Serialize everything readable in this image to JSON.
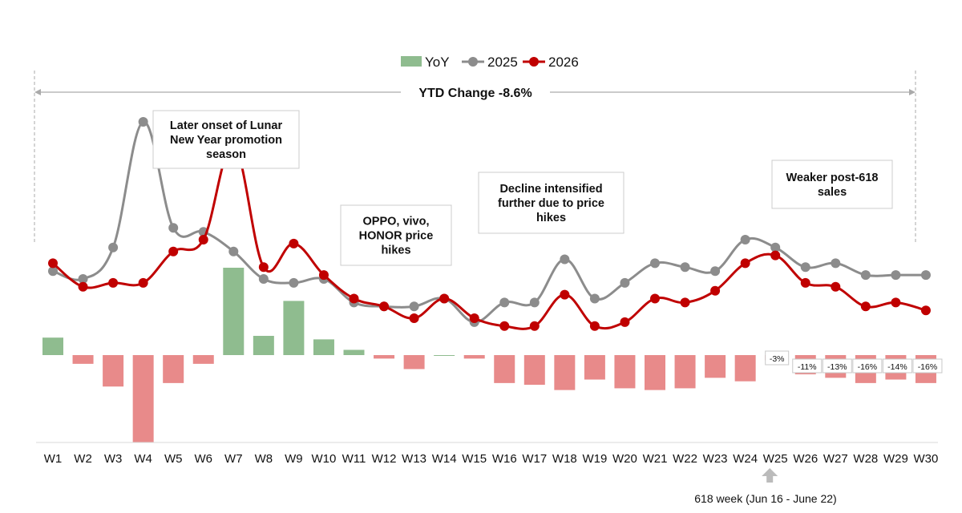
{
  "chart_data": {
    "type": "bar+line",
    "categories": [
      "W1",
      "W2",
      "W3",
      "W4",
      "W5",
      "W6",
      "W7",
      "W8",
      "W9",
      "W10",
      "W11",
      "W12",
      "W13",
      "W14",
      "W15",
      "W16",
      "W17",
      "W18",
      "W19",
      "W20",
      "W21",
      "W22",
      "W23",
      "W24",
      "W25",
      "W26",
      "W27",
      "W28",
      "W29",
      "W30"
    ],
    "series": [
      {
        "name": "YoY",
        "type": "bar",
        "color_positive": "#8fbc8f",
        "color_negative": "#e88a8a",
        "values": [
          10,
          -5,
          -18,
          -50,
          -16,
          -5,
          50,
          11,
          31,
          9,
          3,
          -2,
          -8,
          0,
          -2,
          -16,
          -17,
          -20,
          -14,
          -19,
          -20,
          -19,
          -13,
          -15,
          -3,
          -11,
          -13,
          -16,
          -14,
          -16
        ]
      },
      {
        "name": "2025",
        "type": "line",
        "color": "#8c8c8c",
        "values": [
          65,
          63,
          71,
          103,
          76,
          75,
          70,
          63,
          62,
          63,
          57,
          56,
          56,
          58,
          52,
          57,
          57,
          68,
          58,
          62,
          67,
          66,
          65,
          73,
          71,
          66,
          67,
          64,
          64,
          64
        ]
      },
      {
        "name": "2026",
        "type": "line",
        "color": "#c00000",
        "values": [
          67,
          61,
          62,
          62,
          70,
          73,
          97,
          66,
          72,
          64,
          58,
          56,
          53,
          58,
          53,
          51,
          51,
          59,
          51,
          52,
          58,
          57,
          60,
          67,
          69,
          62,
          61,
          56,
          57,
          55
        ]
      }
    ],
    "legend": [
      "YoY",
      "2025",
      "2026"
    ],
    "legend_position": "top-center",
    "ytd_label": "YTD Change -8.6%",
    "bar_labels": [
      {
        "index": 24,
        "text": "-3%"
      },
      {
        "index": 25,
        "text": "-11%"
      },
      {
        "index": 26,
        "text": "-13%"
      },
      {
        "index": 27,
        "text": "-16%"
      },
      {
        "index": 28,
        "text": "-14%"
      },
      {
        "index": 29,
        "text": "-16%"
      }
    ],
    "annotations": [
      {
        "lines": [
          "Later onset of Lunar",
          "New Year promotion",
          "season"
        ]
      },
      {
        "lines": [
          "OPPO, vivo,",
          "HONOR price",
          "hikes"
        ]
      },
      {
        "lines": [
          "Decline intensified",
          "further due to price",
          "hikes"
        ]
      },
      {
        "lines": [
          "Weaker post-618",
          "sales"
        ]
      }
    ],
    "note": "618 week (Jun 16 - June 22)",
    "grid": false
  },
  "colors": {
    "bar_positive": "#8fbc8f",
    "bar_negative": "#e88a8a",
    "line_2025": "#8c8c8c",
    "line_2026": "#c00000"
  },
  "icons": {
    "note_arrow": "up-arrow-icon"
  }
}
